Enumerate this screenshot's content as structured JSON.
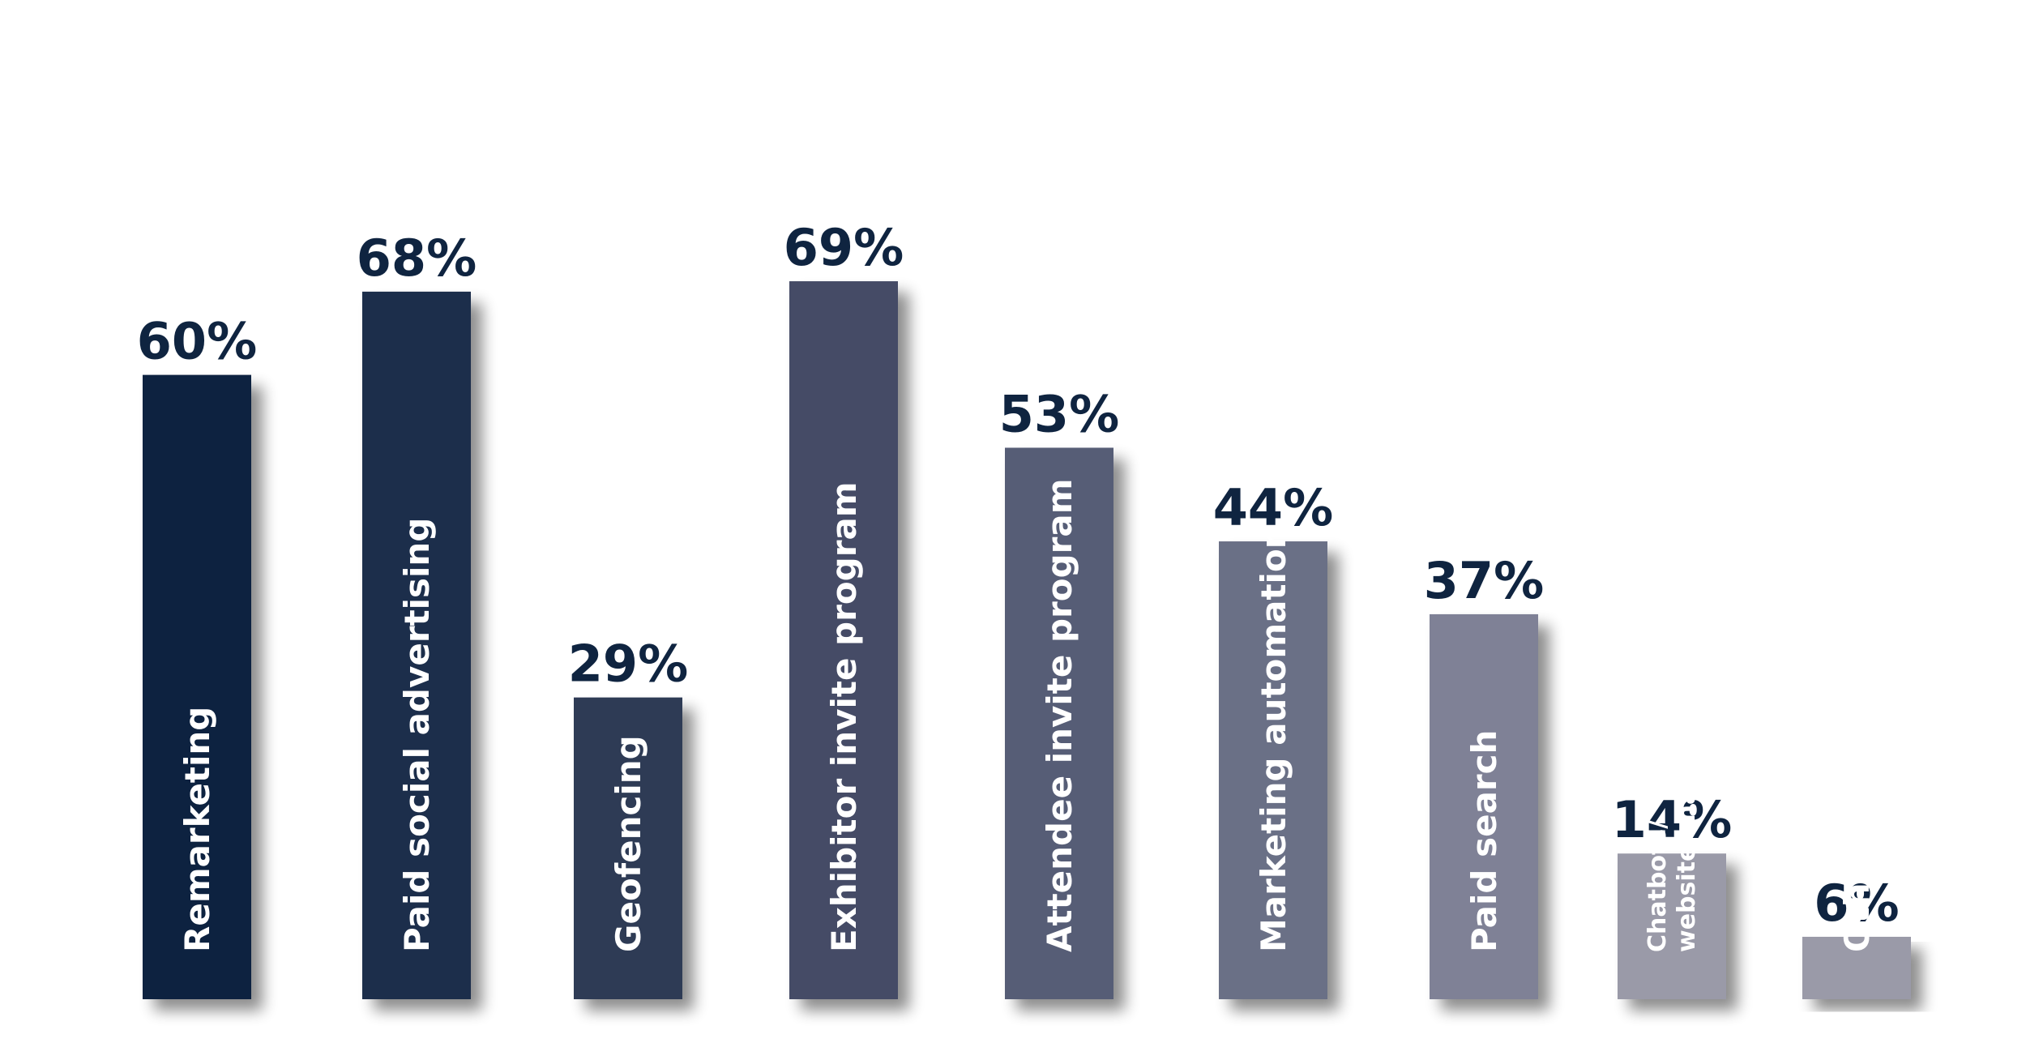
{
  "chart_data": {
    "type": "bar",
    "categories": [
      "Remarketing",
      "Paid social advertising",
      "Geofencing",
      "Exhibitor invite program",
      "Attendee invite program",
      "Marketing automation",
      "Paid search",
      [
        "Chatbots/",
        "website chat"
      ],
      "Other"
    ],
    "values": [
      60,
      68,
      29,
      69,
      53,
      44,
      37,
      14,
      6
    ],
    "value_labels": [
      "60%",
      "68%",
      "29%",
      "69%",
      "53%",
      "44%",
      "37%",
      "14%",
      "6%"
    ],
    "colors": [
      "#0b2440",
      "#1f2f4b",
      "#2f3a55",
      "#454c66",
      "#575d76",
      "#6b6f86",
      "#7f8196",
      "#9a9aa8",
      "#9a9aa8"
    ],
    "title": "",
    "xlabel": "",
    "ylabel": "",
    "ylim": [
      0,
      100
    ],
    "grid": false,
    "legend": "none"
  }
}
